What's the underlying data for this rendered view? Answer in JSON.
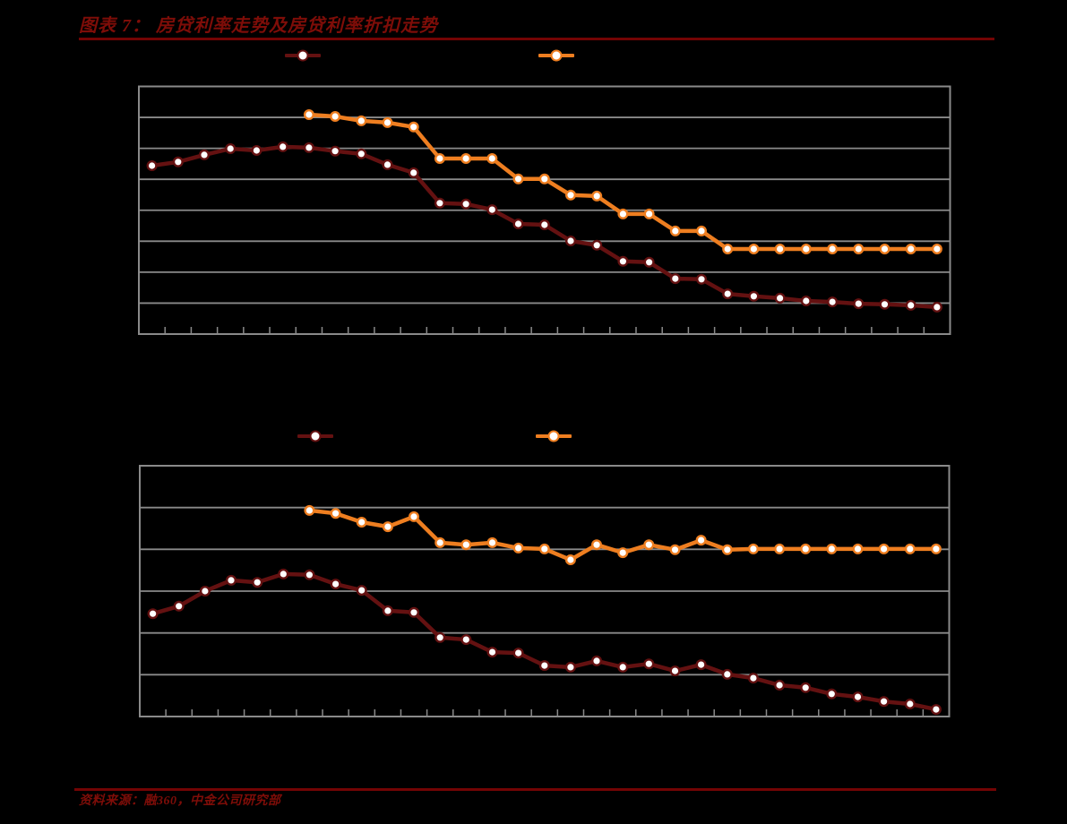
{
  "page": {
    "background": "#000000"
  },
  "figure": {
    "title": "图表 7：  房贷利率走势及房贷利率折扣走势",
    "title_color": "#7e0d08",
    "rule_color": "#730404"
  },
  "source": {
    "text": "资料来源：融360，中金公司研究部"
  },
  "chart_data": [
    {
      "type": "line",
      "title": "",
      "grid_color": "#8a8a8a",
      "x_axis": {
        "categories": 31,
        "tick_count": 32,
        "labels_visible": false
      },
      "y_axis": {
        "gridline_bands": 8,
        "labels_visible": false,
        "unit": "gridline-intervals-above-bottom-axis",
        "ylim": [
          0,
          8
        ],
        "grid": "on"
      },
      "legend": {
        "labels_visible": false,
        "position": "above-plot"
      },
      "series": [
        {
          "name": "series-maroon",
          "color": "#641111",
          "marker": "white-circle",
          "start_index": 0,
          "values": [
            5.44,
            5.56,
            5.79,
            5.99,
            5.93,
            6.05,
            6.02,
            5.91,
            5.82,
            5.47,
            5.21,
            4.23,
            4.2,
            4.02,
            3.56,
            3.53,
            3.01,
            2.87,
            2.35,
            2.32,
            1.79,
            1.77,
            1.3,
            1.22,
            1.16,
            1.07,
            1.04,
            0.98,
            0.96,
            0.93,
            0.87
          ]
        },
        {
          "name": "series-orange",
          "color": "#ee7e20",
          "marker": "white-circle",
          "start_index": 6,
          "values": [
            7.09,
            7.03,
            6.89,
            6.83,
            6.69,
            5.67,
            5.67,
            5.67,
            5.01,
            5.01,
            4.49,
            4.46,
            3.88,
            3.88,
            3.33,
            3.33,
            2.75,
            2.75,
            2.75,
            2.75,
            2.75,
            2.75,
            2.75,
            2.75,
            2.75
          ]
        }
      ]
    },
    {
      "type": "line",
      "title": "",
      "grid_color": "#8a8a8a",
      "x_axis": {
        "categories": 31,
        "tick_count": 32,
        "labels_visible": false
      },
      "y_axis": {
        "gridline_bands": 6,
        "labels_visible": false,
        "unit": "gridline-intervals-above-bottom-axis",
        "ylim": [
          0,
          6
        ],
        "grid": "on"
      },
      "legend": {
        "labels_visible": false,
        "position": "above-plot"
      },
      "series": [
        {
          "name": "series-maroon",
          "color": "#641111",
          "marker": "white-circle",
          "start_index": 0,
          "values": [
            2.46,
            2.64,
            3.0,
            3.26,
            3.21,
            3.41,
            3.39,
            3.17,
            3.02,
            2.53,
            2.49,
            1.89,
            1.84,
            1.54,
            1.52,
            1.22,
            1.18,
            1.33,
            1.18,
            1.26,
            1.09,
            1.24,
            1.01,
            0.92,
            0.75,
            0.69,
            0.54,
            0.47,
            0.36,
            0.3,
            0.17
          ]
        },
        {
          "name": "series-orange",
          "color": "#ee7e20",
          "marker": "white-circle",
          "start_index": 6,
          "values": [
            4.93,
            4.86,
            4.65,
            4.54,
            4.78,
            4.16,
            4.11,
            4.16,
            4.03,
            4.01,
            3.75,
            4.11,
            3.92,
            4.11,
            3.99,
            4.22,
            3.99,
            4.01,
            4.01,
            4.01,
            4.01,
            4.01,
            4.01,
            4.01,
            4.01
          ]
        }
      ]
    }
  ]
}
